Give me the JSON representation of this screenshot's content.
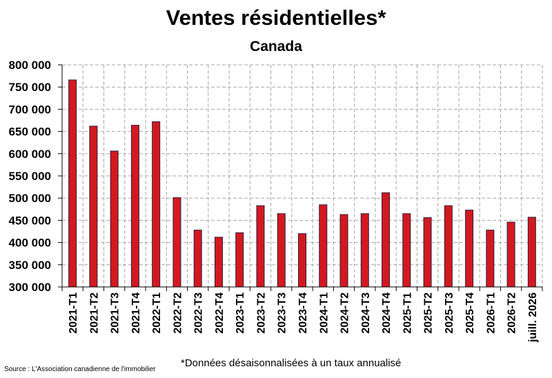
{
  "title": "Ventes résidentielles*",
  "subtitle": "Canada",
  "note": "*Données désaisonnalisées à un taux annualisé",
  "source": "Source : L'Association canadienne de l'immobilier",
  "chart_data": {
    "type": "bar",
    "title": "Ventes résidentielles*",
    "subtitle": "Canada",
    "categories": [
      "2021-T1",
      "2021-T2",
      "2021-T3",
      "2021-T4",
      "2022-T1",
      "2022-T2",
      "2022-T3",
      "2022-T4",
      "2023-T1",
      "2023-T2",
      "2023-T3",
      "2023-T4",
      "2024-T1",
      "2024-T2",
      "2024-T3",
      "2024-T4",
      "2025-T1",
      "2025-T2",
      "2025-T3",
      "2025-T4",
      "2026-T1",
      "2026-T2",
      "juill. 2026"
    ],
    "values": [
      766000,
      662000,
      606000,
      664000,
      672000,
      501000,
      428000,
      412000,
      422000,
      483000,
      465000,
      420000,
      485000,
      463000,
      465000,
      512000,
      465000,
      456000,
      483000,
      473000,
      428000,
      446000,
      457000
    ],
    "ylim": [
      300000,
      800000
    ],
    "yticks": [
      300000,
      350000,
      400000,
      450000,
      500000,
      550000,
      600000,
      650000,
      700000,
      750000,
      800000
    ],
    "ytick_labels": [
      "300 000",
      "350 000",
      "400 000",
      "450 000",
      "500 000",
      "550 000",
      "600 000",
      "650 000",
      "700 000",
      "750 000",
      "800 000"
    ],
    "grid": true,
    "bar_color": "#d2191f",
    "bar_edge_color": "#2a1f3d",
    "grid_color": "#a6a6a6"
  }
}
